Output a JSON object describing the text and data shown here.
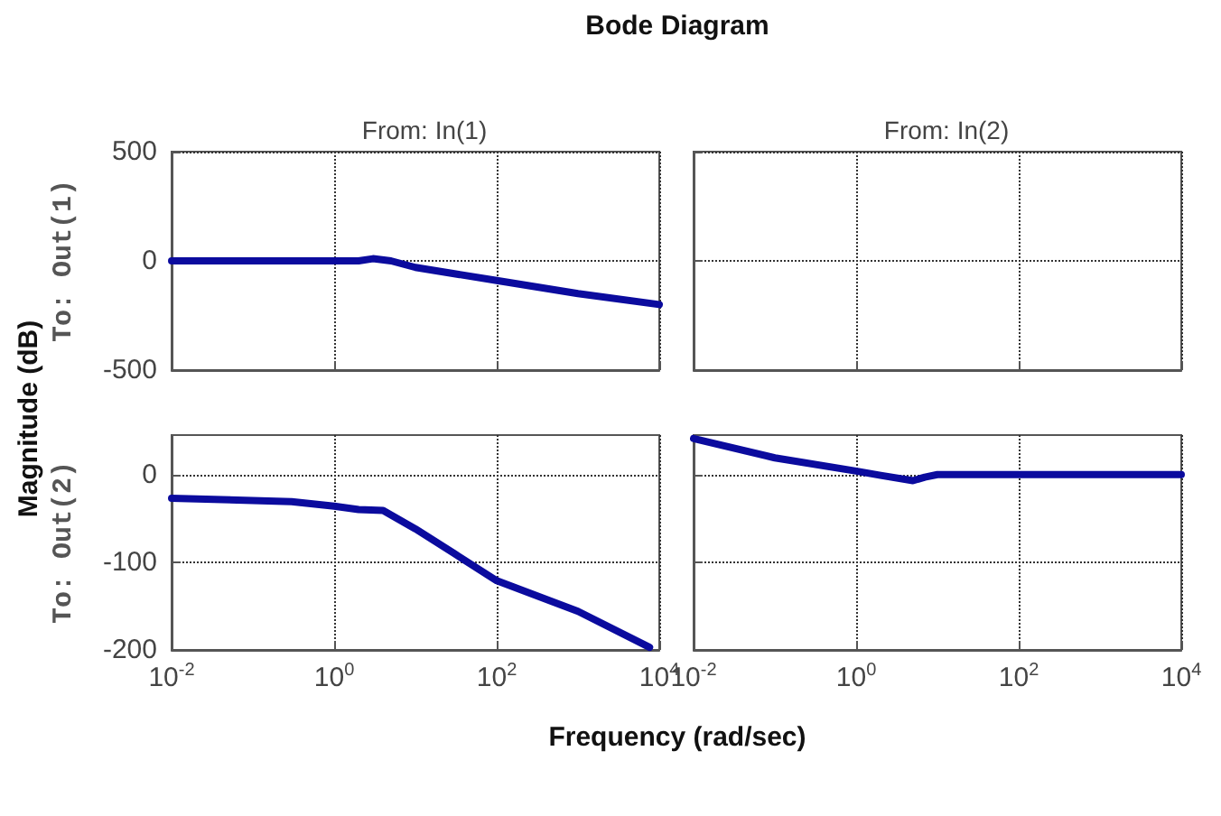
{
  "chart_data": [
    {
      "type": "line",
      "title": "From: In(1)",
      "ylabel": "To: Out(1)",
      "annotations": [
        "Bode Diagram",
        "Magnitude (dB)"
      ],
      "log": "x",
      "xlim": [
        0.01,
        10000
      ],
      "xticks": [
        {
          "value": 0.01,
          "label": null
        },
        {
          "value": 1,
          "label": null
        },
        {
          "value": 100,
          "label": null
        },
        {
          "value": 10000,
          "label": null
        }
      ],
      "ylim": [
        -500,
        500
      ],
      "yticks": [
        -500,
        0,
        500
      ],
      "tick_labels": "y",
      "grid": true,
      "marker": "none",
      "line_style": "solid",
      "series": [
        {
          "color": "#0b0b9e",
          "x": [
            0.01,
            1,
            2,
            3,
            5,
            10,
            100,
            1000,
            10000
          ],
          "values": [
            0,
            0,
            0,
            10,
            0,
            -30,
            -90,
            -150,
            -200
          ]
        }
      ]
    },
    {
      "type": "line",
      "title": "From: In(2)",
      "log": "x",
      "xlim": [
        0.01,
        10000
      ],
      "xticks": [
        {
          "value": 0.01,
          "label": null
        },
        {
          "value": 1,
          "label": null
        },
        {
          "value": 100,
          "label": null
        },
        {
          "value": 10000,
          "label": null
        }
      ],
      "ylim": [
        -500,
        500
      ],
      "yticks": [
        -500,
        0,
        500
      ],
      "tick_labels": false,
      "grid": true
    },
    {
      "type": "line",
      "ylabel": "To: Out(2)",
      "log": "x",
      "xlim": [
        0.01,
        10000
      ],
      "xticks": [
        {
          "value": 0.01,
          "label": "10$^{-2}$"
        },
        {
          "value": 1,
          "label": "10$^{0}$"
        },
        {
          "value": 100,
          "label": "10$^{2}$"
        },
        {
          "value": 10000,
          "label": "10$^{4}$"
        }
      ],
      "ylim": [
        -200,
        45
      ],
      "yticks": [
        -200,
        -100,
        0
      ],
      "grid": true,
      "marker": "none",
      "line_style": "solid",
      "series": [
        {
          "color": "#0b0b9e",
          "x": [
            0.01,
            0.3,
            1,
            2,
            4,
            10,
            30,
            100,
            1000,
            7600
          ],
          "values": [
            -27,
            -31,
            -36,
            -40,
            -41,
            -62,
            -90,
            -121,
            -156,
            -197
          ]
        }
      ]
    },
    {
      "type": "line",
      "xlabel": "Frequency (rad/sec)",
      "log": "x",
      "xlim": [
        0.01,
        10000
      ],
      "xticks": [
        {
          "value": 0.01,
          "label": "10$^{-2}$"
        },
        {
          "value": 1,
          "label": "10$^{0}$"
        },
        {
          "value": 100,
          "label": "10$^{2}$"
        },
        {
          "value": 10000,
          "label": "10$^{4}$"
        }
      ],
      "ylim": [
        -200,
        45
      ],
      "yticks": [
        -200,
        -100,
        0
      ],
      "tick_labels": "x",
      "grid": true,
      "marker": "none",
      "line_style": "solid",
      "series": [
        {
          "color": "#0b0b9e",
          "x": [
            0.01,
            0.1,
            1,
            2,
            5,
            7,
            10,
            100,
            5000,
            10000
          ],
          "values": [
            41,
            19,
            4,
            -1,
            -7,
            -3,
            0,
            0,
            0,
            0
          ]
        }
      ]
    }
  ]
}
